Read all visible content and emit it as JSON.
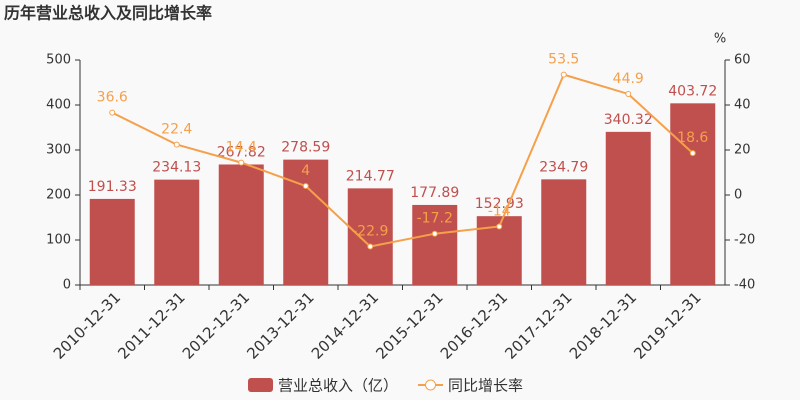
{
  "chart_data": {
    "type": "bar",
    "title": "历年营业总收入及同比增长率",
    "y2label": "%",
    "categories": [
      "2010-12-31",
      "2011-12-31",
      "2012-12-31",
      "2013-12-31",
      "2014-12-31",
      "2015-12-31",
      "2016-12-31",
      "2017-12-31",
      "2018-12-31",
      "2019-12-31"
    ],
    "series": [
      {
        "name": "营业总收入（亿）",
        "type": "bar",
        "color": "#c0504d",
        "values": [
          191.33,
          234.13,
          267.82,
          278.59,
          214.77,
          177.89,
          152.93,
          234.79,
          340.32,
          403.72
        ]
      },
      {
        "name": "同比增长率",
        "type": "line",
        "axis": "y2",
        "color": "#f5a04a",
        "values": [
          36.6,
          22.4,
          14.4,
          4,
          -22.9,
          -17.2,
          -14,
          53.5,
          44.9,
          18.6
        ]
      }
    ],
    "ylim": [
      0,
      500
    ],
    "yticks": [
      0,
      100,
      200,
      300,
      400,
      500
    ],
    "y2lim": [
      -40,
      60
    ],
    "y2ticks": [
      -40,
      -20,
      0,
      20,
      40,
      60
    ],
    "grid": false
  }
}
